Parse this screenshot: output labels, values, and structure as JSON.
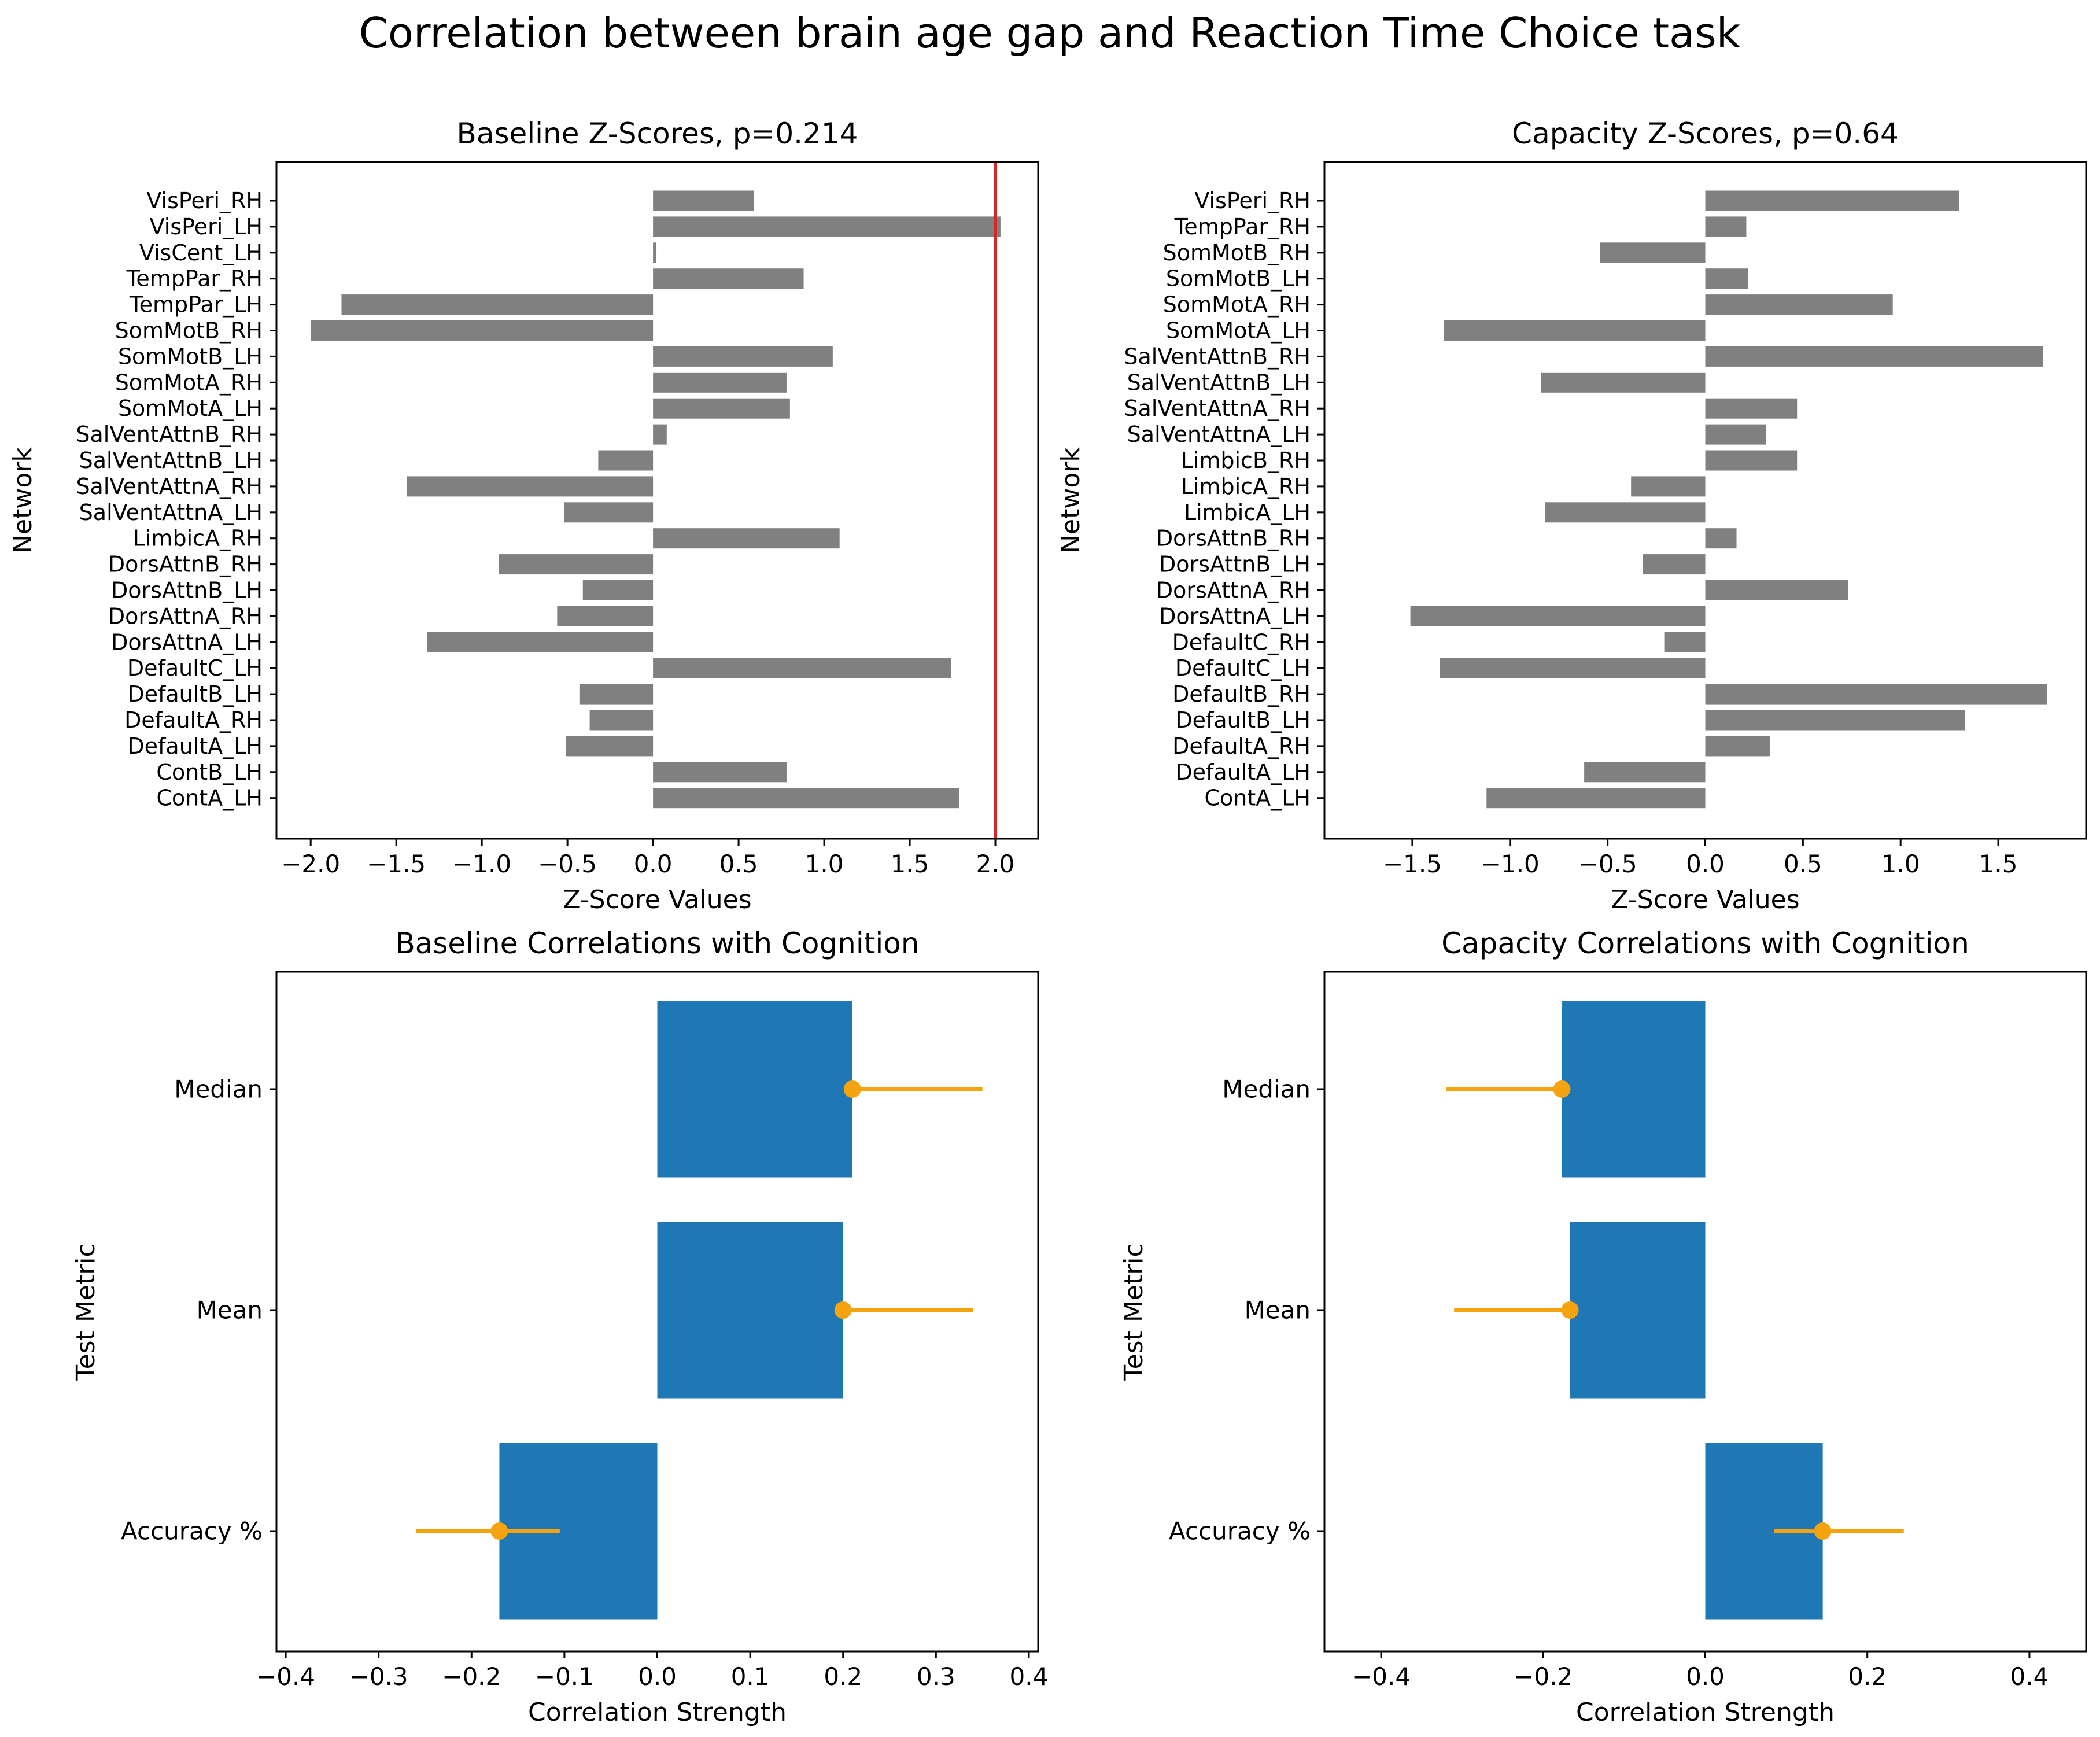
{
  "figure": {
    "title": "Correlation between brain age gap and Reaction Time Choice task"
  },
  "chart_data": [
    {
      "type": "bar",
      "orientation": "horizontal",
      "title": "Baseline Z-Scores, p=0.214",
      "xlabel": "Z-Score Values",
      "ylabel": "Network",
      "xlim": [
        -2.2,
        2.25
      ],
      "xticks": [
        -2.0,
        -1.5,
        -1.0,
        -0.5,
        0.0,
        0.5,
        1.0,
        1.5,
        2.0
      ],
      "xtick_labels": [
        "−2.0",
        "−1.5",
        "−1.0",
        "−0.5",
        "0.0",
        "0.5",
        "1.0",
        "1.5",
        "2.0"
      ],
      "bar_color": "#808080",
      "reference_line": {
        "x": 2.0,
        "color": "#d62728"
      },
      "categories": [
        "VisPeri_RH",
        "VisPeri_LH",
        "VisCent_LH",
        "TempPar_RH",
        "TempPar_LH",
        "SomMotB_RH",
        "SomMotB_LH",
        "SomMotA_RH",
        "SomMotA_LH",
        "SalVentAttnB_RH",
        "SalVentAttnB_LH",
        "SalVentAttnA_RH",
        "SalVentAttnA_LH",
        "LimbicA_RH",
        "DorsAttnB_RH",
        "DorsAttnB_LH",
        "DorsAttnA_RH",
        "DorsAttnA_LH",
        "DefaultC_LH",
        "DefaultB_LH",
        "DefaultA_RH",
        "DefaultA_LH",
        "ContB_LH",
        "ContA_LH"
      ],
      "values": [
        0.59,
        2.03,
        0.02,
        0.88,
        -1.82,
        -2.0,
        1.05,
        0.78,
        0.8,
        0.08,
        -0.32,
        -1.44,
        -0.52,
        1.09,
        -0.9,
        -0.41,
        -0.56,
        -1.32,
        1.74,
        -0.43,
        -0.37,
        -0.51,
        0.78,
        1.79
      ]
    },
    {
      "type": "bar",
      "orientation": "horizontal",
      "title": "Capacity Z-Scores, p=0.64",
      "xlabel": "Z-Score Values",
      "ylabel": "Network",
      "xlim": [
        -1.95,
        1.95
      ],
      "xticks": [
        -1.5,
        -1.0,
        -0.5,
        0.0,
        0.5,
        1.0,
        1.5
      ],
      "xtick_labels": [
        "−1.5",
        "−1.0",
        "−0.5",
        "0.0",
        "0.5",
        "1.0",
        "1.5"
      ],
      "bar_color": "#808080",
      "categories": [
        "VisPeri_RH",
        "TempPar_RH",
        "SomMotB_RH",
        "SomMotB_LH",
        "SomMotA_RH",
        "SomMotA_LH",
        "SalVentAttnB_RH",
        "SalVentAttnB_LH",
        "SalVentAttnA_RH",
        "SalVentAttnA_LH",
        "LimbicB_RH",
        "LimbicA_RH",
        "LimbicA_LH",
        "DorsAttnB_RH",
        "DorsAttnB_LH",
        "DorsAttnA_RH",
        "DorsAttnA_LH",
        "DefaultC_RH",
        "DefaultC_LH",
        "DefaultB_RH",
        "DefaultB_LH",
        "DefaultA_RH",
        "DefaultA_LH",
        "ContA_LH"
      ],
      "values": [
        1.3,
        0.21,
        -0.54,
        0.22,
        0.96,
        -1.34,
        1.73,
        -0.84,
        0.47,
        0.31,
        0.47,
        -0.38,
        -0.82,
        0.16,
        -0.32,
        0.73,
        -1.51,
        -0.21,
        -1.36,
        1.75,
        1.33,
        0.33,
        -0.62,
        -1.12
      ]
    },
    {
      "type": "bar",
      "orientation": "horizontal",
      "title": "Baseline Correlations with Cognition",
      "xlabel": "Correlation Strength",
      "ylabel": "Test Metric",
      "xlim": [
        -0.41,
        0.41
      ],
      "xticks": [
        -0.4,
        -0.3,
        -0.2,
        -0.1,
        0.0,
        0.1,
        0.2,
        0.3,
        0.4
      ],
      "xtick_labels": [
        "−0.4",
        "−0.3",
        "−0.2",
        "−0.1",
        "0.0",
        "0.1",
        "0.2",
        "0.3",
        "0.4"
      ],
      "bar_color": "#1f77b4",
      "errorbar_color": "#f5a40f",
      "categories": [
        "Median",
        "Mean",
        "Accuracy %"
      ],
      "values": [
        0.21,
        0.2,
        -0.17
      ],
      "ci_low": [
        0.21,
        0.2,
        -0.26
      ],
      "ci_high": [
        0.35,
        0.34,
        -0.105
      ]
    },
    {
      "type": "bar",
      "orientation": "horizontal",
      "title": "Capacity Correlations with Cognition",
      "xlabel": "Correlation Strength",
      "ylabel": "Test Metric",
      "xlim": [
        -0.47,
        0.47
      ],
      "xticks": [
        -0.4,
        -0.2,
        0.0,
        0.2,
        0.4
      ],
      "xtick_labels": [
        "−0.4",
        "−0.2",
        "0.0",
        "0.2",
        "0.4"
      ],
      "bar_color": "#1f77b4",
      "errorbar_color": "#f5a40f",
      "categories": [
        "Median",
        "Mean",
        "Accuracy %"
      ],
      "values": [
        -0.177,
        -0.167,
        0.145
      ],
      "ci_low": [
        -0.32,
        -0.31,
        0.085
      ],
      "ci_high": [
        -0.177,
        -0.167,
        0.245
      ]
    }
  ]
}
